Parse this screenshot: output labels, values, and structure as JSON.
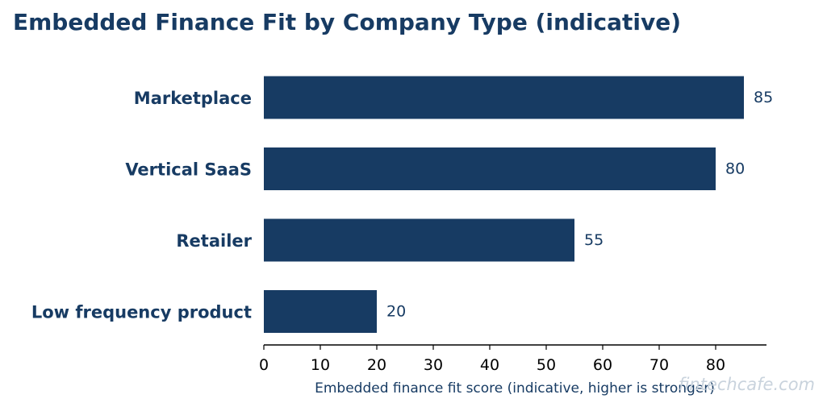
{
  "colors": {
    "bar": "#173b63",
    "text": "#173b63",
    "axis": "#000000",
    "watermark": "#c9d3dd"
  },
  "watermark": "fintechcafe.com",
  "chart_data": {
    "type": "bar",
    "orientation": "horizontal",
    "title": "Embedded Finance Fit by Company Type (indicative)",
    "categories": [
      "Marketplace",
      "Vertical SaaS",
      "Retailer",
      "Low frequency product"
    ],
    "values": [
      85,
      80,
      55,
      20
    ],
    "xlabel": "Embedded finance fit score (indicative, higher is stronger)",
    "ylabel": "",
    "xlim": [
      0,
      89
    ],
    "xticks": [
      0,
      10,
      20,
      30,
      40,
      50,
      60,
      70,
      80
    ],
    "grid": false,
    "data_labels": true
  }
}
